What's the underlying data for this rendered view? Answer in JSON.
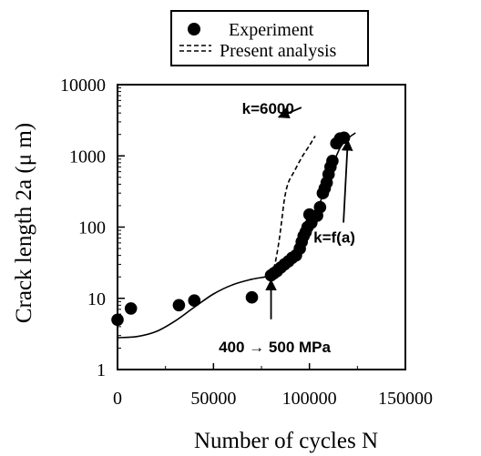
{
  "chart_data": {
    "type": "scatter",
    "xlabel": "Number of cycles N",
    "ylabel": "Crack length 2a (μ m)",
    "xlim": [
      0,
      150000
    ],
    "ylim": [
      1,
      10000
    ],
    "y_scale": "log",
    "grid": false,
    "legend_position": "top-center",
    "x_ticks": [
      {
        "value": 0,
        "label": "0"
      },
      {
        "value": 50000,
        "label": "50000"
      },
      {
        "value": 100000,
        "label": "100000"
      },
      {
        "value": 150000,
        "label": "150000"
      }
    ],
    "y_ticks": [
      {
        "value": 1,
        "label": "1"
      },
      {
        "value": 10,
        "label": "10"
      },
      {
        "value": 100,
        "label": "100"
      },
      {
        "value": 1000,
        "label": "1000"
      },
      {
        "value": 10000,
        "label": "10000"
      }
    ],
    "legend": [
      {
        "label": "Experiment",
        "marker": "circle"
      },
      {
        "label": "Present analysis",
        "marker": "dashed"
      }
    ],
    "series": [
      {
        "name": "Experiment",
        "style": "circle",
        "points": [
          [
            0,
            5
          ],
          [
            7000,
            7.2
          ],
          [
            32000,
            8
          ],
          [
            40000,
            9.3
          ],
          [
            70000,
            10.3
          ],
          [
            80000,
            21
          ],
          [
            81500,
            22.5
          ],
          [
            83000,
            24
          ],
          [
            85000,
            27
          ],
          [
            87000,
            30
          ],
          [
            89000,
            33
          ],
          [
            91000,
            37
          ],
          [
            93000,
            40
          ],
          [
            95000,
            50
          ],
          [
            96000,
            62
          ],
          [
            97000,
            75
          ],
          [
            98000,
            85
          ],
          [
            99000,
            100
          ],
          [
            100000,
            150
          ],
          [
            101000,
            115
          ],
          [
            102500,
            140
          ],
          [
            104000,
            145
          ],
          [
            105500,
            190
          ],
          [
            107000,
            300
          ],
          [
            108000,
            350
          ],
          [
            109000,
            420
          ],
          [
            110000,
            550
          ],
          [
            111000,
            700
          ],
          [
            112000,
            850
          ],
          [
            114000,
            1500
          ],
          [
            116000,
            1750
          ],
          [
            118000,
            1800
          ]
        ]
      },
      {
        "name": "Present analysis",
        "style": "solid",
        "points": [
          [
            0,
            2.8
          ],
          [
            10000,
            2.9
          ],
          [
            20000,
            3.4
          ],
          [
            30000,
            4.8
          ],
          [
            40000,
            7.5
          ],
          [
            50000,
            11.5
          ],
          [
            60000,
            15.5
          ],
          [
            70000,
            18.5
          ],
          [
            80000,
            21
          ],
          [
            86000,
            28
          ],
          [
            92000,
            42
          ],
          [
            98000,
            85
          ],
          [
            104000,
            170
          ],
          [
            108000,
            350
          ],
          [
            112000,
            720
          ],
          [
            116000,
            1300
          ],
          [
            120000,
            1750
          ],
          [
            124000,
            2100
          ]
        ]
      },
      {
        "name": "Present analysis",
        "style": "dashed",
        "points": [
          [
            80000,
            21
          ],
          [
            82000,
            30
          ],
          [
            84000,
            60
          ],
          [
            85500,
            120
          ],
          [
            87000,
            250
          ],
          [
            89000,
            420
          ],
          [
            92000,
            600
          ],
          [
            96000,
            950
          ],
          [
            100000,
            1400
          ],
          [
            103000,
            1900
          ]
        ]
      }
    ],
    "annotations": [
      {
        "text": "k=6000",
        "label_x": 92000,
        "label_y": 4500,
        "arrow_to": [
          84000,
          3500
        ]
      },
      {
        "text": "k=f(a)",
        "label_x": 113000,
        "label_y": 68,
        "arrow_to": [
          120000,
          1650
        ]
      },
      {
        "text": "400 → 500 MPa",
        "label_x": 80000,
        "label_y": 2.1,
        "arrow_to": [
          80000,
          18
        ]
      }
    ]
  }
}
